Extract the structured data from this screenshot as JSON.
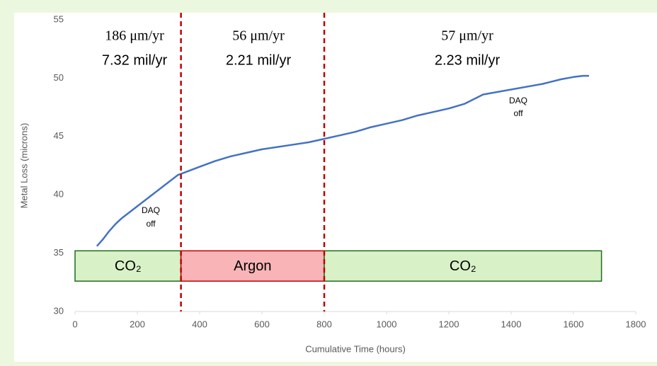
{
  "chart_data": {
    "type": "line",
    "x_label": "Cumulative Time (hours)",
    "y_label": "Metal Loss (microns)",
    "x": [
      70,
      90,
      110,
      130,
      150,
      330,
      350,
      400,
      450,
      500,
      550,
      600,
      650,
      700,
      750,
      800,
      850,
      900,
      950,
      1000,
      1050,
      1100,
      1150,
      1200,
      1250,
      1310,
      1500,
      1530,
      1560,
      1600,
      1630,
      1650
    ],
    "values": [
      35.6,
      36.2,
      36.9,
      37.5,
      38.0,
      41.7,
      41.9,
      42.4,
      42.9,
      43.3,
      43.6,
      43.9,
      44.1,
      44.3,
      44.5,
      44.8,
      45.1,
      45.4,
      45.8,
      46.1,
      46.4,
      46.8,
      47.1,
      47.4,
      47.8,
      48.6,
      49.5,
      49.7,
      49.9,
      50.1,
      50.2,
      50.2
    ],
    "color": "#4472c4",
    "xlim": [
      0,
      1800
    ],
    "xticks": [
      0,
      200,
      400,
      600,
      800,
      1000,
      1200,
      1400,
      1600,
      1800
    ],
    "ylim": [
      30,
      55
    ],
    "yticks": [
      30,
      35,
      40,
      45,
      50,
      55
    ],
    "vlines": [
      340,
      800
    ],
    "vline_color": "#c00000",
    "regions": [
      {
        "label": "CO₂",
        "start": 0,
        "end": 340,
        "bottom": 32.6,
        "top": 35.2,
        "color": "#d8f1c6",
        "edge": "#1f6b1f"
      },
      {
        "label": "Argon",
        "start": 340,
        "end": 800,
        "bottom": 32.6,
        "top": 35.2,
        "color": "#f8b4b6",
        "edge": "#c00000"
      },
      {
        "label": "CO₂",
        "start": 800,
        "end": 1690,
        "bottom": 32.6,
        "top": 35.2,
        "color": "#d8f1c6",
        "edge": "#1f6b1f"
      }
    ],
    "annotations": [
      {
        "lines": [
          "186 μm/yr",
          "7.32 mil/yr"
        ]
      },
      {
        "lines": [
          "56 μm/yr",
          "2.21 mil/yr"
        ]
      },
      {
        "lines": [
          "57 μm/yr",
          "2.23 mil/yr"
        ]
      },
      {
        "lines": [
          "DAQ",
          "off"
        ]
      },
      {
        "lines": [
          "DAQ",
          "off"
        ]
      }
    ]
  }
}
